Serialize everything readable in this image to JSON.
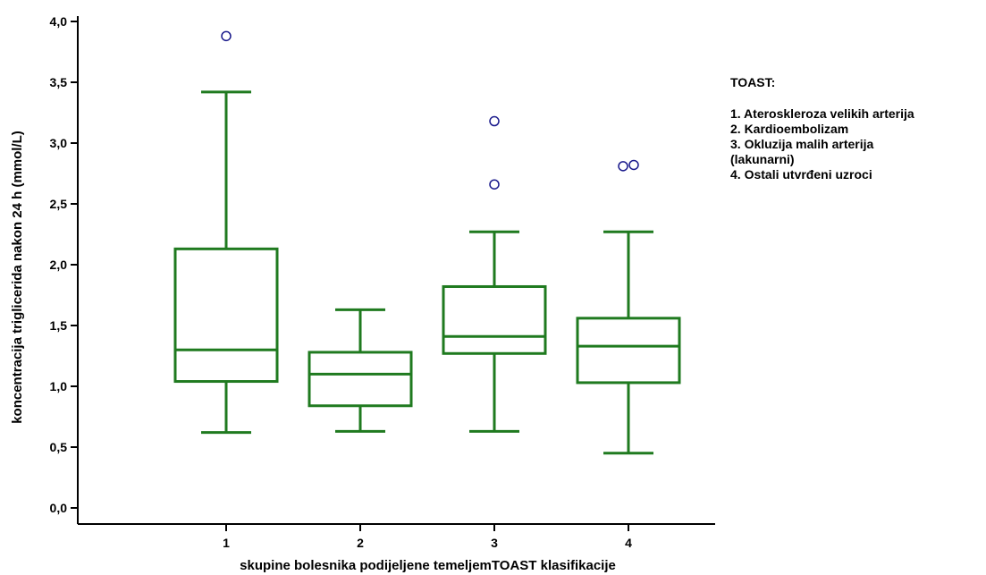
{
  "chart_data": {
    "type": "box",
    "xlabel": "skupine bolesnika podijeljene temeljemTOAST klasifikacije",
    "ylabel": "koncentracija triglicerida nakon 24 h (mmol/L)",
    "ylim": [
      0,
      4
    ],
    "yticks": [
      {
        "value": 0,
        "label": "0,0"
      },
      {
        "value": 0.5,
        "label": "0,5"
      },
      {
        "value": 1,
        "label": "1,0"
      },
      {
        "value": 1.5,
        "label": "1,5"
      },
      {
        "value": 2,
        "label": "2,0"
      },
      {
        "value": 2.5,
        "label": "2,5"
      },
      {
        "value": 3,
        "label": "3,0"
      },
      {
        "value": 3.5,
        "label": "3,5"
      },
      {
        "value": 4,
        "label": "4,0"
      }
    ],
    "categories": [
      "1",
      "2",
      "3",
      "4"
    ],
    "boxes": [
      {
        "category": "1",
        "whisker_low": 0.62,
        "q1": 1.04,
        "median": 1.3,
        "q3": 2.13,
        "whisker_high": 3.42,
        "outliers": [
          3.88
        ]
      },
      {
        "category": "2",
        "whisker_low": 0.63,
        "q1": 0.84,
        "median": 1.1,
        "q3": 1.28,
        "whisker_high": 1.63,
        "outliers": []
      },
      {
        "category": "3",
        "whisker_low": 0.63,
        "q1": 1.27,
        "median": 1.41,
        "q3": 1.82,
        "whisker_high": 2.27,
        "outliers": [
          2.66,
          3.18
        ]
      },
      {
        "category": "4",
        "whisker_low": 0.45,
        "q1": 1.03,
        "median": 1.33,
        "q3": 1.56,
        "whisker_high": 2.27,
        "outliers": [
          2.81,
          2.82
        ]
      }
    ],
    "colors": {
      "box": "#1f7a1f",
      "outlier": "#1a1a8c",
      "axis": "#000000"
    },
    "grid": false
  },
  "legend": {
    "title": "TOAST:",
    "items": [
      "1. Ateroskleroza velikih arterija",
      "2. Kardioembolizam",
      "3. Okluzija malih arterija\n(lakunarni)",
      "4. Ostali utvrđeni uzroci"
    ]
  }
}
